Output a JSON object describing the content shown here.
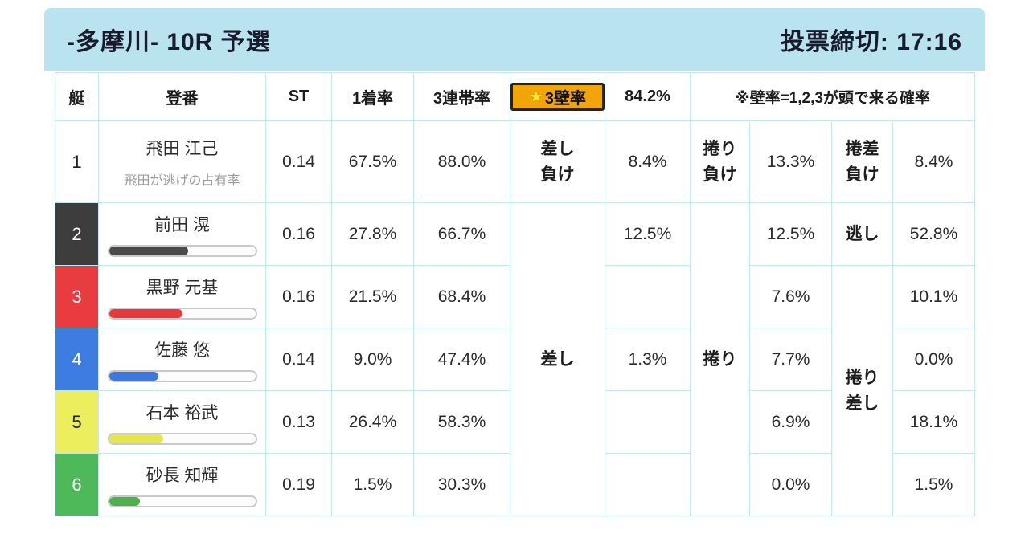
{
  "colors": {
    "header_bg": "#b9e3ef",
    "grid_line": "#c3e7f2",
    "highlight_bg": "#f2a40b",
    "highlight_border": "#1c2430",
    "boat_1": "#ffffff",
    "boat_2": "#3d3d3d",
    "boat_3": "#e83c41",
    "boat_4": "#3d7ce0",
    "boat_5": "#ecee5e",
    "boat_6": "#4eb959"
  },
  "header": {
    "title": "-多摩川- 10R 予選",
    "deadline": "投票締切: 17:16"
  },
  "table": {
    "columns": {
      "boat": "艇",
      "racer": "登番",
      "st": "ST",
      "win": "1着率",
      "top3": "3連帯率",
      "wall_star": "★",
      "wall_label": "3壁率",
      "wall_value": "84.2%",
      "note": "※壁率=1,2,3が頭で来る確率"
    },
    "merged": {
      "sashi": "差し",
      "makuri": "捲り",
      "makuri_sashi": "捲り\n差し"
    },
    "rows": [
      {
        "boat": "1",
        "name": "飛田 江己",
        "subtitle": "飛田が逃げの占有率",
        "st": "0.14",
        "win": "67.5%",
        "top3": "88.0%",
        "c1_label": "差し\n負け",
        "c1": "8.4%",
        "c2_label": "捲り\n負け",
        "c2": "13.3%",
        "c3_label": "捲差\n負け",
        "c3": "8.4%"
      },
      {
        "boat": "2",
        "name": "前田 滉",
        "st": "0.16",
        "win": "27.8%",
        "top3": "66.7%",
        "c1": "12.5%",
        "c2": "12.5%",
        "c3_label": "逃し",
        "c3": "52.8%",
        "bar_pct": 54
      },
      {
        "boat": "3",
        "name": "黒野 元基",
        "st": "0.16",
        "win": "21.5%",
        "top3": "68.4%",
        "c1": "",
        "c2": "7.6%",
        "c3": "10.1%",
        "bar_pct": 50
      },
      {
        "boat": "4",
        "name": "佐藤 悠",
        "st": "0.14",
        "win": "9.0%",
        "top3": "47.4%",
        "c1": "1.3%",
        "c2": "7.7%",
        "c3": "0.0%",
        "bar_pct": 34
      },
      {
        "boat": "5",
        "name": "石本 裕武",
        "st": "0.13",
        "win": "26.4%",
        "top3": "58.3%",
        "c1": "",
        "c2": "6.9%",
        "c3": "18.1%",
        "bar_pct": 37
      },
      {
        "boat": "6",
        "name": "砂長 知輝",
        "st": "0.19",
        "win": "1.5%",
        "top3": "30.3%",
        "c1": "",
        "c2": "0.0%",
        "c3": "1.5%",
        "bar_pct": 21
      }
    ]
  }
}
